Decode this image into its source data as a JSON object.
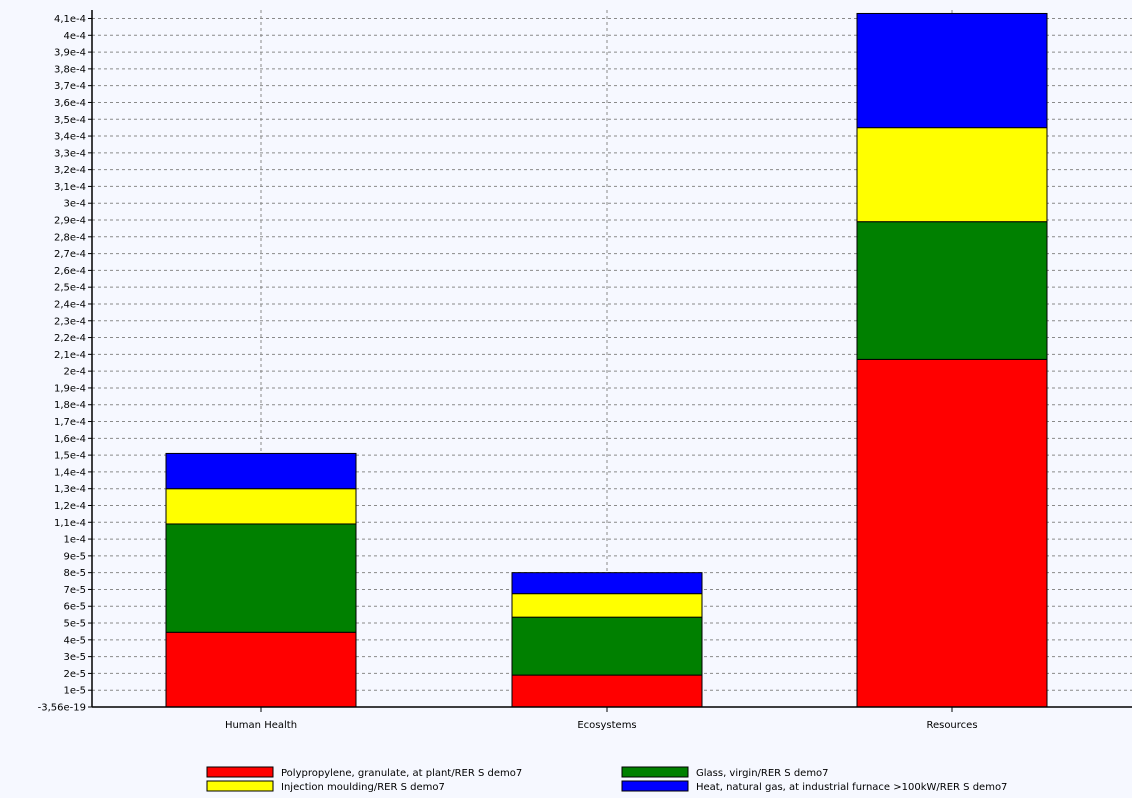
{
  "chart_data": {
    "type": "bar",
    "stacked": true,
    "categories": [
      "Human Health",
      "Ecosystems",
      "Resources"
    ],
    "yticks": [
      "4,1e-4",
      "4e-4",
      "3,9e-4",
      "3,8e-4",
      "3,7e-4",
      "3,6e-4",
      "3,5e-4",
      "3,4e-4",
      "3,3e-4",
      "3,2e-4",
      "3,1e-4",
      "3e-4",
      "2,9e-4",
      "2,8e-4",
      "2,7e-4",
      "2,6e-4",
      "2,5e-4",
      "2,4e-4",
      "2,3e-4",
      "2,2e-4",
      "2,1e-4",
      "2e-4",
      "1,9e-4",
      "1,8e-4",
      "1,7e-4",
      "1,6e-4",
      "1,5e-4",
      "1,4e-4",
      "1,3e-4",
      "1,2e-4",
      "1,1e-4",
      "1e-4",
      "9e-5",
      "8e-5",
      "7e-5",
      "6e-5",
      "5e-5",
      "4e-5",
      "3e-5",
      "2e-5",
      "1e-5",
      "-3,56e-19"
    ],
    "ylim": [
      0,
      0.000413
    ],
    "grid": true,
    "legend_position": "bottom",
    "series": [
      {
        "name": "Polypropylene, granulate, at plant/RER S demo7",
        "color": "#ff0000",
        "values": [
          4.45e-05,
          1.9e-05,
          0.000207
        ]
      },
      {
        "name": "Glass, virgin/RER S demo7",
        "color": "#008000",
        "values": [
          6.45e-05,
          3.45e-05,
          8.2e-05
        ]
      },
      {
        "name": "Injection moulding/RER S demo7",
        "color": "#ffff00",
        "values": [
          2.1e-05,
          1.4e-05,
          5.6e-05
        ]
      },
      {
        "name": "Heat, natural gas, at industrial furnace >100kW/RER S demo7",
        "color": "#0000ff",
        "values": [
          2.1e-05,
          1.25e-05,
          6.8e-05
        ]
      }
    ]
  }
}
